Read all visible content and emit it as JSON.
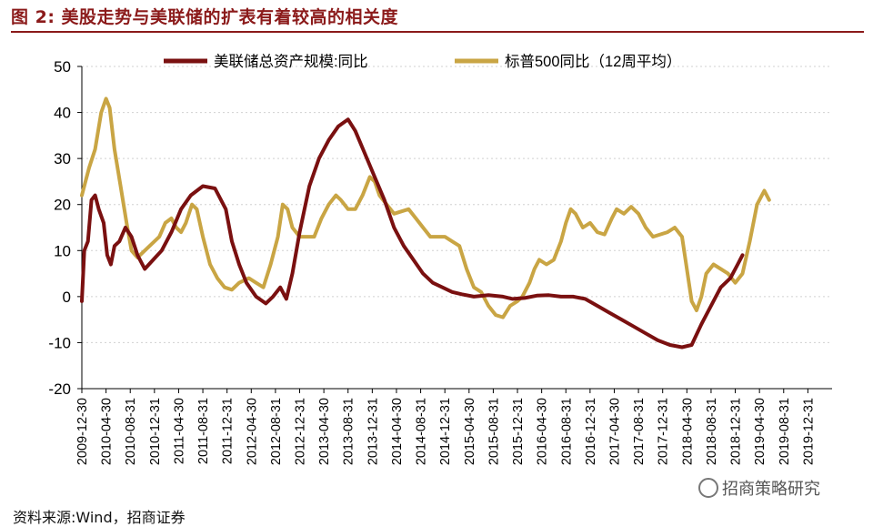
{
  "page": {
    "title": "图 2:  美股走势与美联储的扩表有着较高的相关度",
    "source": "资料来源:Wind，招商证券",
    "watermark": "招商策略研究"
  },
  "colors": {
    "title": "#8b1a1a",
    "fed": "#7a1010",
    "sp": "#c9a544",
    "grid": "#d0d0d0"
  },
  "chart_data": {
    "type": "line",
    "title": "",
    "xlabel": "",
    "ylabel": "",
    "ylim": [
      -20,
      50
    ],
    "yticks": [
      -20,
      -10,
      0,
      10,
      20,
      30,
      40,
      50
    ],
    "grid": true,
    "legend_position": "top",
    "x_tick_labels": [
      "2009-12-30",
      "2010-04-30",
      "2010-08-31",
      "2010-12-31",
      "2011-04-30",
      "2011-08-31",
      "2011-12-31",
      "2012-04-30",
      "2012-08-31",
      "2012-12-31",
      "2013-04-30",
      "2013-08-31",
      "2013-12-31",
      "2014-04-30",
      "2014-08-31",
      "2014-12-31",
      "2015-04-30",
      "2015-08-31",
      "2015-12-31",
      "2016-04-30",
      "2016-08-31",
      "2016-12-31",
      "2017-04-30",
      "2017-08-31",
      "2017-12-31",
      "2018-04-30",
      "2018-08-31",
      "2018-12-31",
      "2019-04-30",
      "2019-08-31",
      "2019-12-31"
    ],
    "x_axis_index_range": [
      0,
      31
    ],
    "series": [
      {
        "name": "美联储总资产规模:同比",
        "color": "#7a1010",
        "points": [
          [
            0,
            -1
          ],
          [
            0.1,
            10
          ],
          [
            0.25,
            12
          ],
          [
            0.4,
            21
          ],
          [
            0.55,
            22
          ],
          [
            0.7,
            19
          ],
          [
            0.9,
            16
          ],
          [
            1.05,
            9
          ],
          [
            1.2,
            7
          ],
          [
            1.35,
            11
          ],
          [
            1.55,
            12
          ],
          [
            1.8,
            15
          ],
          [
            2.05,
            13
          ],
          [
            2.3,
            9
          ],
          [
            2.6,
            6
          ],
          [
            2.95,
            8
          ],
          [
            3.3,
            10
          ],
          [
            3.7,
            14
          ],
          [
            4.1,
            19
          ],
          [
            4.5,
            22
          ],
          [
            5.0,
            24
          ],
          [
            5.5,
            23.5
          ],
          [
            5.95,
            19
          ],
          [
            6.2,
            12
          ],
          [
            6.5,
            7
          ],
          [
            6.8,
            3
          ],
          [
            7.2,
            0
          ],
          [
            7.6,
            -1.5
          ],
          [
            7.9,
            0
          ],
          [
            8.2,
            2
          ],
          [
            8.45,
            -0.5
          ],
          [
            8.7,
            5
          ],
          [
            9.0,
            14
          ],
          [
            9.4,
            24
          ],
          [
            9.8,
            30
          ],
          [
            10.2,
            34
          ],
          [
            10.6,
            37
          ],
          [
            11.0,
            38.5
          ],
          [
            11.3,
            36
          ],
          [
            11.7,
            31
          ],
          [
            12.1,
            26
          ],
          [
            12.5,
            21
          ],
          [
            12.9,
            15
          ],
          [
            13.3,
            11
          ],
          [
            13.7,
            8
          ],
          [
            14.1,
            5
          ],
          [
            14.5,
            3
          ],
          [
            14.9,
            2
          ],
          [
            15.3,
            1
          ],
          [
            15.7,
            0.5
          ],
          [
            16.2,
            0
          ],
          [
            16.8,
            0.3
          ],
          [
            17.4,
            0
          ],
          [
            17.8,
            -0.5
          ],
          [
            18.3,
            -0.3
          ],
          [
            18.8,
            0.2
          ],
          [
            19.3,
            0.3
          ],
          [
            19.8,
            0
          ],
          [
            20.3,
            0
          ],
          [
            20.8,
            -0.5
          ],
          [
            21.3,
            -2
          ],
          [
            21.8,
            -3.5
          ],
          [
            22.3,
            -5
          ],
          [
            22.8,
            -6.5
          ],
          [
            23.3,
            -8
          ],
          [
            23.8,
            -9.5
          ],
          [
            24.3,
            -10.5
          ],
          [
            24.8,
            -11
          ],
          [
            25.2,
            -10.5
          ],
          [
            25.6,
            -6
          ],
          [
            26.0,
            -2
          ],
          [
            26.4,
            2
          ],
          [
            26.8,
            4
          ],
          [
            27.1,
            7
          ],
          [
            27.3,
            9
          ]
        ]
      },
      {
        "name": "标普500同比（12周平均）",
        "color": "#c9a544",
        "points": [
          [
            0,
            22
          ],
          [
            0.3,
            28
          ],
          [
            0.55,
            32
          ],
          [
            0.8,
            40
          ],
          [
            1.0,
            43
          ],
          [
            1.15,
            41
          ],
          [
            1.35,
            32
          ],
          [
            1.6,
            24
          ],
          [
            1.85,
            16
          ],
          [
            2.05,
            10
          ],
          [
            2.3,
            8.5
          ],
          [
            2.6,
            10
          ],
          [
            2.9,
            11.5
          ],
          [
            3.2,
            13
          ],
          [
            3.45,
            16
          ],
          [
            3.7,
            17
          ],
          [
            3.9,
            15
          ],
          [
            4.1,
            14
          ],
          [
            4.3,
            16
          ],
          [
            4.55,
            20
          ],
          [
            4.75,
            19
          ],
          [
            5.0,
            13
          ],
          [
            5.3,
            7
          ],
          [
            5.6,
            4
          ],
          [
            5.9,
            2
          ],
          [
            6.2,
            1.5
          ],
          [
            6.5,
            3
          ],
          [
            6.9,
            4
          ],
          [
            7.2,
            3
          ],
          [
            7.5,
            2
          ],
          [
            7.8,
            7
          ],
          [
            8.1,
            13
          ],
          [
            8.3,
            20
          ],
          [
            8.5,
            19
          ],
          [
            8.7,
            15
          ],
          [
            9.0,
            13
          ],
          [
            9.3,
            13
          ],
          [
            9.6,
            13
          ],
          [
            9.9,
            17
          ],
          [
            10.2,
            20
          ],
          [
            10.5,
            22
          ],
          [
            10.7,
            21
          ],
          [
            11.0,
            19
          ],
          [
            11.3,
            19
          ],
          [
            11.6,
            22
          ],
          [
            11.9,
            26
          ],
          [
            12.1,
            25
          ],
          [
            12.3,
            22
          ],
          [
            12.6,
            20
          ],
          [
            12.9,
            18
          ],
          [
            13.2,
            18.5
          ],
          [
            13.5,
            19
          ],
          [
            13.8,
            17
          ],
          [
            14.1,
            15
          ],
          [
            14.4,
            13
          ],
          [
            14.7,
            13
          ],
          [
            15.0,
            13
          ],
          [
            15.3,
            12
          ],
          [
            15.6,
            11
          ],
          [
            15.9,
            6
          ],
          [
            16.2,
            2
          ],
          [
            16.5,
            1
          ],
          [
            16.8,
            -2
          ],
          [
            17.1,
            -4
          ],
          [
            17.4,
            -4.5
          ],
          [
            17.7,
            -2
          ],
          [
            18.0,
            -1
          ],
          [
            18.2,
            0
          ],
          [
            18.5,
            3
          ],
          [
            18.7,
            6
          ],
          [
            18.9,
            8
          ],
          [
            19.2,
            7
          ],
          [
            19.5,
            8
          ],
          [
            19.8,
            12
          ],
          [
            20.0,
            16
          ],
          [
            20.2,
            19
          ],
          [
            20.4,
            18
          ],
          [
            20.7,
            15
          ],
          [
            21.0,
            16
          ],
          [
            21.3,
            14
          ],
          [
            21.6,
            13.5
          ],
          [
            21.9,
            17
          ],
          [
            22.1,
            19
          ],
          [
            22.4,
            18
          ],
          [
            22.7,
            19.5
          ],
          [
            23.0,
            18
          ],
          [
            23.3,
            15
          ],
          [
            23.6,
            13
          ],
          [
            23.9,
            13.5
          ],
          [
            24.2,
            14
          ],
          [
            24.5,
            15
          ],
          [
            24.8,
            13
          ],
          [
            25.0,
            6
          ],
          [
            25.2,
            -1
          ],
          [
            25.4,
            -3
          ],
          [
            25.6,
            0
          ],
          [
            25.8,
            5
          ],
          [
            26.1,
            7
          ],
          [
            26.4,
            6
          ],
          [
            26.7,
            5
          ],
          [
            27.0,
            3
          ],
          [
            27.3,
            5
          ],
          [
            27.6,
            12
          ],
          [
            27.9,
            20
          ],
          [
            28.2,
            23
          ],
          [
            28.4,
            21
          ]
        ]
      }
    ]
  }
}
